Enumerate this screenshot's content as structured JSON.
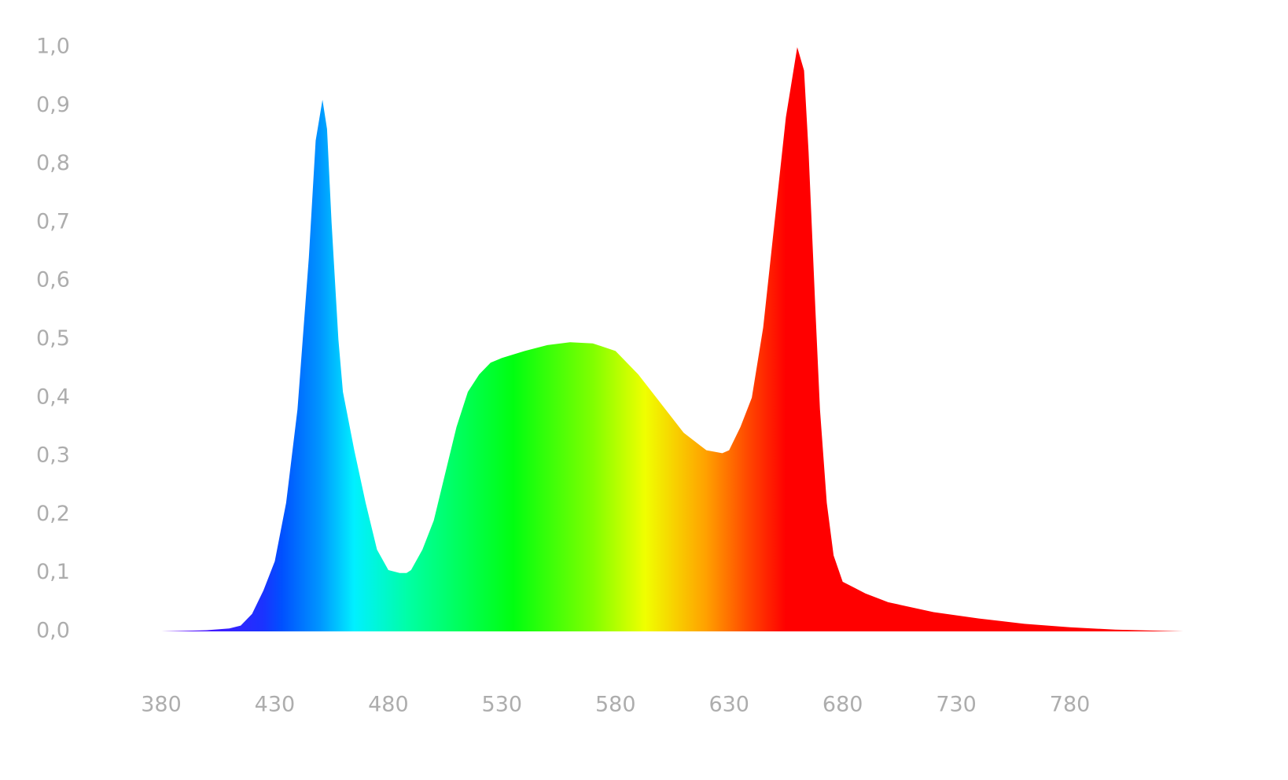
{
  "chart_data": {
    "type": "area",
    "x": [
      380,
      400,
      410,
      415,
      420,
      425,
      430,
      435,
      440,
      445,
      448,
      451,
      453,
      455,
      458,
      460,
      465,
      470,
      475,
      480,
      485,
      488,
      490,
      495,
      500,
      505,
      510,
      515,
      520,
      525,
      530,
      540,
      550,
      560,
      570,
      580,
      590,
      600,
      610,
      620,
      627,
      630,
      635,
      640,
      645,
      650,
      655,
      660,
      663,
      665,
      668,
      670,
      673,
      676,
      680,
      685,
      690,
      700,
      720,
      740,
      760,
      780,
      800,
      830
    ],
    "values": [
      0,
      0.002,
      0.005,
      0.01,
      0.03,
      0.07,
      0.12,
      0.22,
      0.38,
      0.64,
      0.84,
      0.91,
      0.86,
      0.7,
      0.5,
      0.41,
      0.31,
      0.22,
      0.14,
      0.105,
      0.1,
      0.1,
      0.105,
      0.14,
      0.19,
      0.27,
      0.35,
      0.41,
      0.44,
      0.46,
      0.468,
      0.48,
      0.49,
      0.495,
      0.493,
      0.48,
      0.44,
      0.39,
      0.34,
      0.31,
      0.305,
      0.31,
      0.35,
      0.4,
      0.52,
      0.7,
      0.88,
      1.0,
      0.96,
      0.82,
      0.55,
      0.38,
      0.22,
      0.13,
      0.085,
      0.075,
      0.065,
      0.05,
      0.033,
      0.022,
      0.013,
      0.007,
      0.003,
      0
    ],
    "gradient": {
      "x": [
        380,
        425,
        433,
        450,
        465,
        490,
        535,
        570,
        593,
        620,
        640,
        655,
        830
      ],
      "colors": [
        "#6a00ff",
        "#1a33ff",
        "#0050ff",
        "#0096ff",
        "#00f0ff",
        "#00ffa0",
        "#00ff10",
        "#80ff00",
        "#f0ff00",
        "#ffa000",
        "#ff4000",
        "#ff0000",
        "#ff0000"
      ]
    },
    "xlim": [
      380,
      830
    ],
    "ylim": [
      0,
      1
    ],
    "xticks": [
      380,
      430,
      480,
      530,
      580,
      630,
      680,
      730,
      780
    ],
    "yticks": [
      {
        "value": 0,
        "label": "0,0"
      },
      {
        "value": 0.1,
        "label": "0,1"
      },
      {
        "value": 0.2,
        "label": "0,2"
      },
      {
        "value": 0.3,
        "label": "0,3"
      },
      {
        "value": 0.4,
        "label": "0,4"
      },
      {
        "value": 0.5,
        "label": "0,5"
      },
      {
        "value": 0.6,
        "label": "0,6"
      },
      {
        "value": 0.7,
        "label": "0,7"
      },
      {
        "value": 0.8,
        "label": "0,8"
      },
      {
        "value": 0.9,
        "label": "0,9"
      },
      {
        "value": 1.0,
        "label": "1,0"
      }
    ],
    "grid": false
  }
}
